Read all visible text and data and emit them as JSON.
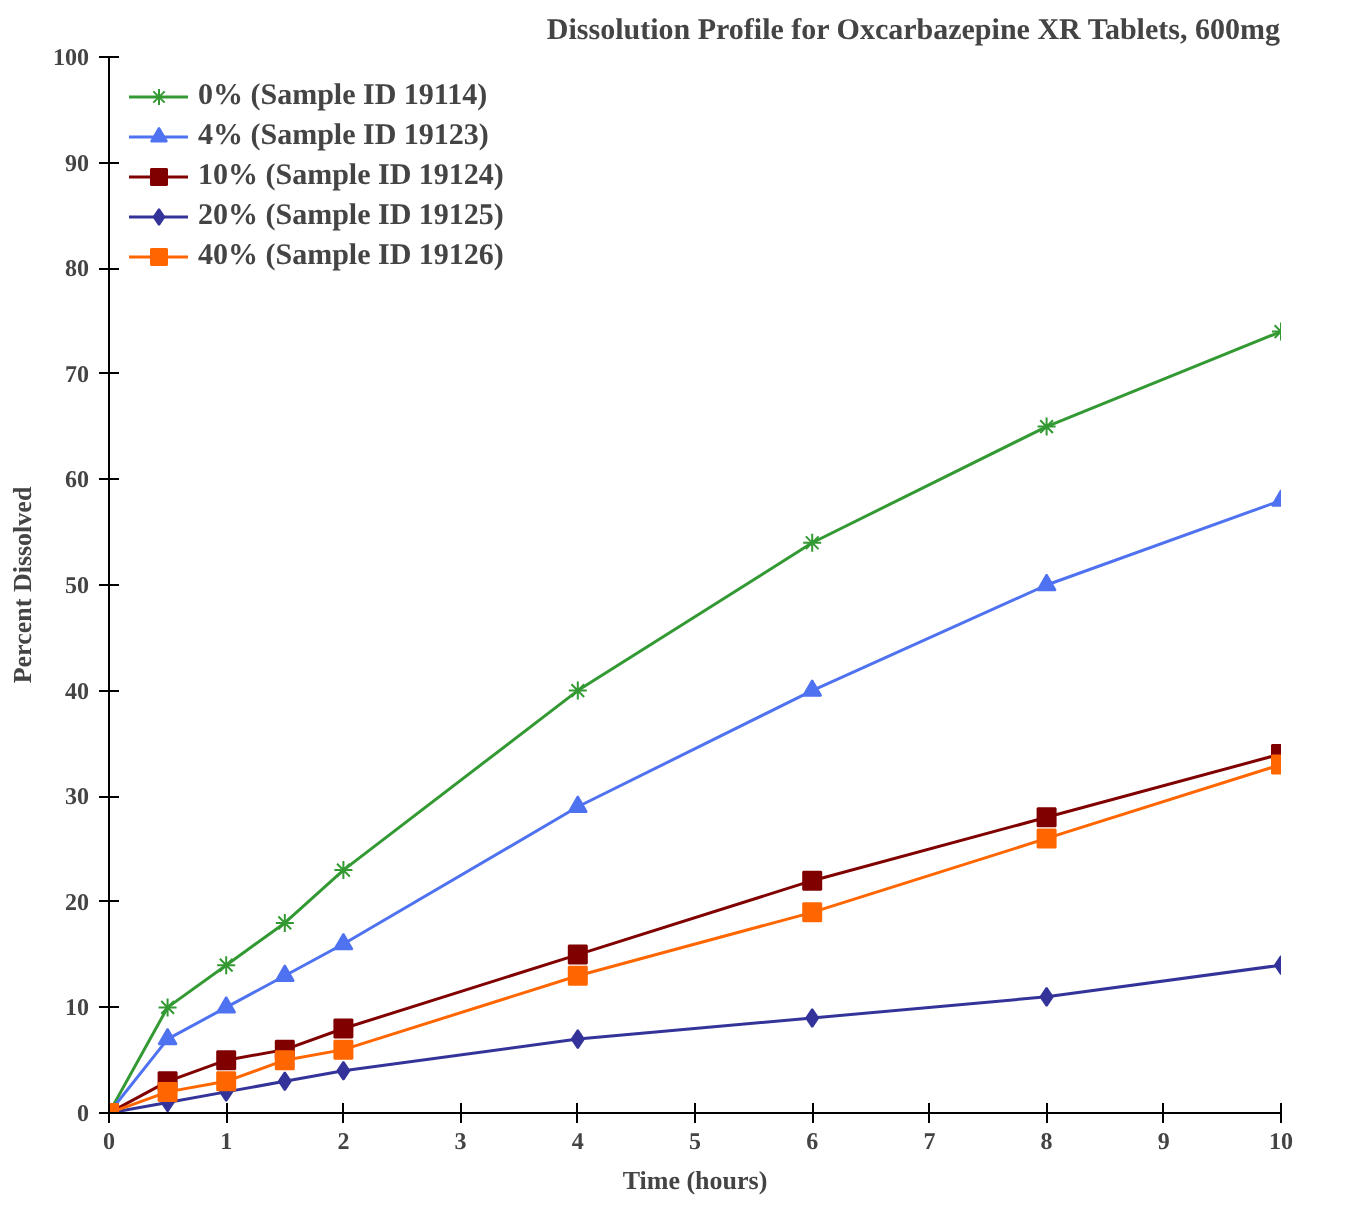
{
  "chart_data": {
    "type": "line",
    "title": "Dissolution Profile for Oxcarbazepine XR Tablets, 600mg",
    "xlabel": "Time (hours)",
    "ylabel": "Percent Dissolved",
    "x": [
      0,
      0.5,
      1,
      1.5,
      2,
      4,
      6,
      8,
      10
    ],
    "xlim": [
      0,
      10
    ],
    "xticks": [
      0,
      1,
      2,
      3,
      4,
      5,
      6,
      7,
      8,
      9,
      10
    ],
    "ylim": [
      0,
      100
    ],
    "yticks": [
      0,
      10,
      20,
      30,
      40,
      50,
      60,
      70,
      80,
      90,
      100
    ],
    "grid": false,
    "legend": "top left",
    "series": [
      {
        "name": "0% (Sample ID 19114)",
        "color": "#339933",
        "marker": "cross",
        "values": [
          0,
          10,
          14,
          18,
          23,
          40,
          54,
          65,
          74
        ]
      },
      {
        "name": "4% (Sample ID 19123)",
        "color": "#4f72f0",
        "marker": "triangle",
        "values": [
          0,
          7,
          10,
          13,
          16,
          29,
          40,
          50,
          58
        ]
      },
      {
        "name": "10% (Sample ID 19124)",
        "color": "#800000",
        "marker": "square",
        "values": [
          0,
          3,
          5,
          6,
          8,
          15,
          22,
          28,
          34
        ]
      },
      {
        "name": "20% (Sample ID 19125)",
        "color": "#333399",
        "marker": "diamond",
        "values": [
          0,
          1,
          2,
          3,
          4,
          7,
          9,
          11,
          14
        ]
      },
      {
        "name": "40% (Sample ID 19126)",
        "color": "#ff6600",
        "marker": "square",
        "values": [
          0,
          2,
          3,
          5,
          6,
          13,
          19,
          26,
          33
        ]
      }
    ]
  }
}
